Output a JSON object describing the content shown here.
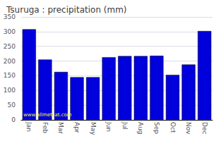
{
  "chart_data": {
    "type": "bar",
    "title": "Tsuruga : precipitation (mm)",
    "categories": [
      "Jan",
      "Feb",
      "Mar",
      "Apr",
      "May",
      "Jun",
      "Jul",
      "Aug",
      "Sep",
      "Oct",
      "Nov",
      "Dec"
    ],
    "values": [
      308,
      205,
      163,
      145,
      145,
      213,
      217,
      217,
      218,
      153,
      188,
      302
    ],
    "color": "#0000dd",
    "ylim": [
      0,
      350
    ],
    "yticks": [
      0,
      50,
      100,
      150,
      200,
      250,
      300,
      350
    ],
    "grid": true,
    "annotations": [
      {
        "text": "www.allmetsat.com",
        "color": "#ffff00"
      }
    ]
  }
}
